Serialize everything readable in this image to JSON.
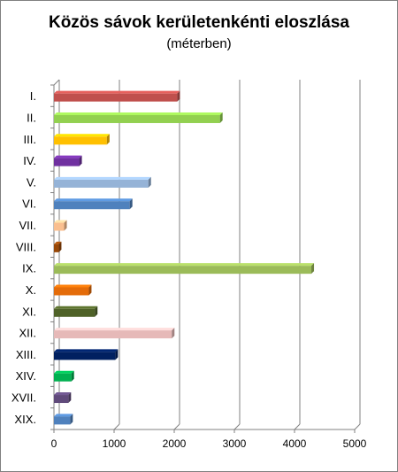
{
  "chart_data": {
    "type": "bar",
    "orientation": "horizontal",
    "title": "Közös sávok kerületenkénti eloszlása",
    "subtitle": "(méterben)",
    "categories": [
      "I.",
      "II.",
      "III.",
      "IV.",
      "V.",
      "VI.",
      "VII.",
      "VIII.",
      "IX.",
      "X.",
      "XI.",
      "XII.",
      "XIII.",
      "XIV.",
      "XVII.",
      "XIX."
    ],
    "values": [
      2050,
      2760,
      880,
      420,
      1570,
      1260,
      170,
      80,
      4280,
      580,
      680,
      1960,
      1020,
      290,
      240,
      270
    ],
    "colors": [
      "#c0504d",
      "#92d050",
      "#ffc000",
      "#7030a0",
      "#95b3d7",
      "#4f81bd",
      "#fabf8f",
      "#984807",
      "#9bbb59",
      "#e46c0a",
      "#4f6228",
      "#e6b9b8",
      "#002060",
      "#00b050",
      "#604a7b",
      "#4f81bd"
    ],
    "xlim": [
      0,
      5000
    ],
    "xticks": [
      0,
      1000,
      2000,
      3000,
      4000,
      5000
    ],
    "grid": true
  }
}
